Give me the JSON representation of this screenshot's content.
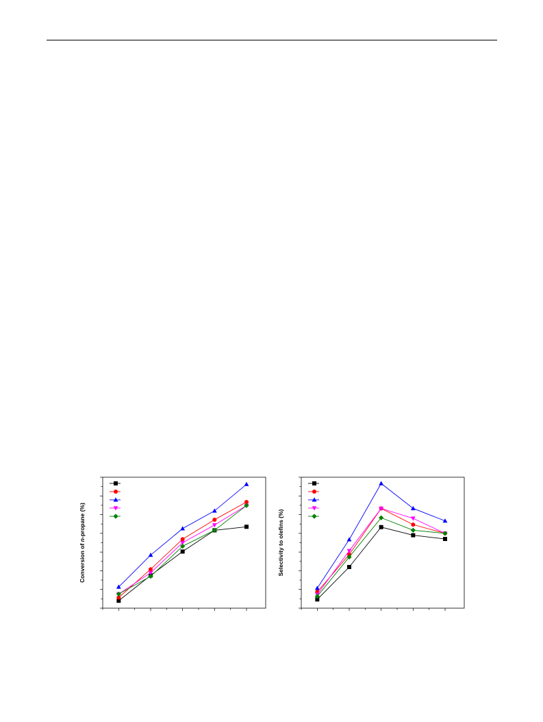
{
  "chart_data": [
    {
      "type": "line",
      "ylabel_pre": "Conversion of ",
      "ylabel_italic": "n",
      "ylabel_post": "-propane (%)",
      "xlabel": "",
      "grid": false,
      "legend_placement": "top-left",
      "categories": [
        1,
        2,
        3,
        4,
        5
      ],
      "ylim": [
        0,
        7.4
      ],
      "xlim": [
        0.5,
        5.6
      ],
      "series": [
        {
          "color": "#000000",
          "marker": "square",
          "values": [
            0.42,
            1.85,
            3.2,
            4.4,
            4.6
          ]
        },
        {
          "color": "#ff0000",
          "marker": "circle",
          "values": [
            0.6,
            2.2,
            3.9,
            5.0,
            6.0
          ]
        },
        {
          "color": "#0000ff",
          "marker": "triangle-up",
          "values": [
            1.2,
            3.0,
            4.5,
            5.5,
            7.0
          ]
        },
        {
          "color": "#ff00ff",
          "marker": "triangle-down",
          "values": [
            0.8,
            2.0,
            3.7,
            4.7,
            5.8
          ]
        },
        {
          "color": "#008000",
          "marker": "diamond",
          "values": [
            0.8,
            1.8,
            3.5,
            4.4,
            5.8
          ]
        }
      ]
    },
    {
      "type": "line",
      "ylabel_pre": "Selectivity to olefins (%)",
      "ylabel_italic": "",
      "ylabel_post": "",
      "xlabel": "",
      "grid": false,
      "legend_placement": "top-left",
      "categories": [
        1,
        2,
        3,
        4,
        5
      ],
      "ylim": [
        0,
        10.5
      ],
      "xlim": [
        0.5,
        5.6
      ],
      "series": [
        {
          "color": "#000000",
          "marker": "square",
          "values": [
            0.7,
            3.3,
            6.5,
            5.85,
            5.55
          ]
        },
        {
          "color": "#ff0000",
          "marker": "circle",
          "values": [
            1.3,
            4.3,
            8.0,
            6.7,
            6.0
          ]
        },
        {
          "color": "#0000ff",
          "marker": "triangle-up",
          "values": [
            1.6,
            5.5,
            10.0,
            8.0,
            7.0
          ]
        },
        {
          "color": "#ff00ff",
          "marker": "triangle-down",
          "values": [
            1.1,
            4.6,
            8.0,
            7.2,
            6.0
          ]
        },
        {
          "color": "#008000",
          "marker": "diamond",
          "values": [
            0.95,
            4.1,
            7.25,
            6.25,
            6.0
          ]
        }
      ]
    }
  ]
}
